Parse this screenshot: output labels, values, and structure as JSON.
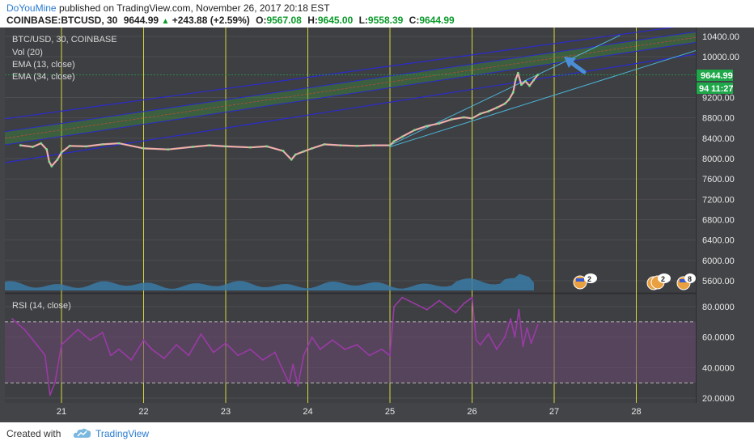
{
  "header": {
    "author": "DoYouMine",
    "published_text": "published on TradingView.com, November 26, 2017 20:18 EST",
    "symbol": "COINBASE:BTCUSD, 30",
    "last": "9644.99",
    "change": "+243.88 (+2.59%)",
    "o_label": "O:",
    "o_value": "9567.08",
    "h_label": "H:",
    "h_value": "9645.00",
    "l_label": "L:",
    "l_value": "9558.39",
    "c_label": "C:",
    "c_value": "9644.99"
  },
  "legend": {
    "pair": "BTC/USD, 30, COINBASE",
    "vol": "Vol (20)",
    "ema13": "EMA (13, close)",
    "ema34": "EMA (34, close)",
    "rsi": "RSI (14, close)"
  },
  "labels": {
    "last_price": "9644.99",
    "countdown_prefix": "94",
    "countdown": "11:27"
  },
  "badges": [
    {
      "count": "2"
    },
    {
      "count": "2"
    },
    {
      "count": "8"
    }
  ],
  "footer": {
    "created_with": "Created with",
    "brand": "TradingView"
  },
  "colors": {
    "background": "#434447",
    "candles": "#e8a0c0",
    "rsi_line": "#9a3aa6",
    "rsi_band": "#6a4872",
    "volume": "#3a7aa6",
    "channel_outer": "#2a2ad0",
    "channel_fill": "#3a9a3a",
    "trend_line": "#4ab4d8",
    "day_line": "#e8e83a",
    "price_label": "#1ea84a",
    "arrow": "#4a8ed6"
  },
  "chart_data": [
    {
      "type": "line",
      "title": "BTC/USD, 30, COINBASE",
      "x_categories": [
        "21",
        "22",
        "23",
        "24",
        "25",
        "26",
        "27",
        "28"
      ],
      "y_ticks": [
        "10400.00",
        "10000.00",
        "9200.00",
        "8800.00",
        "8400.00",
        "8000.00",
        "7600.00",
        "7200.00",
        "6800.00",
        "6400.00",
        "6000.00",
        "5600.00"
      ],
      "ylim": [
        5400,
        10600
      ],
      "series": [
        {
          "name": "BTC/USD",
          "x": [
            20.5,
            20.65,
            20.75,
            20.82,
            20.85,
            20.88,
            20.95,
            21.0,
            21.1,
            21.3,
            21.5,
            21.7,
            22.0,
            22.3,
            22.6,
            22.8,
            23.0,
            23.3,
            23.5,
            23.7,
            23.8,
            23.85,
            23.95,
            24.05,
            24.2,
            24.4,
            24.6,
            24.8,
            25.0,
            25.05,
            25.15,
            25.3,
            25.45,
            25.6,
            25.75,
            25.9,
            26.0,
            26.1,
            26.2,
            26.3,
            26.4,
            26.45,
            26.5,
            26.53,
            26.56,
            26.6,
            26.65,
            26.7,
            26.75,
            26.8
          ],
          "values": [
            8260,
            8230,
            8300,
            8180,
            7940,
            7850,
            7980,
            8120,
            8250,
            8240,
            8280,
            8300,
            8200,
            8180,
            8230,
            8260,
            8240,
            8220,
            8240,
            8150,
            7980,
            8080,
            8140,
            8200,
            8280,
            8260,
            8250,
            8260,
            8260,
            8340,
            8430,
            8560,
            8640,
            8690,
            8770,
            8810,
            8790,
            8880,
            8930,
            9000,
            9080,
            9160,
            9300,
            9550,
            9680,
            9450,
            9520,
            9430,
            9540,
            9645
          ]
        }
      ]
    },
    {
      "type": "bar",
      "title": "Vol (20)",
      "note": "volume profile"
    },
    {
      "type": "line",
      "title": "RSI (14, close)",
      "y_ticks": [
        "80.0000",
        "60.0000",
        "40.0000",
        "20.0000"
      ],
      "ylim": [
        15,
        88
      ],
      "guides": [
        70,
        30
      ],
      "series": [
        {
          "name": "RSI",
          "x": [
            20.4,
            20.55,
            20.7,
            20.8,
            20.86,
            20.92,
            21.0,
            21.1,
            21.2,
            21.35,
            21.5,
            21.6,
            21.7,
            21.85,
            22.0,
            22.1,
            22.25,
            22.4,
            22.55,
            22.7,
            22.85,
            23.0,
            23.15,
            23.3,
            23.45,
            23.6,
            23.7,
            23.77,
            23.82,
            23.88,
            23.95,
            24.05,
            24.15,
            24.3,
            24.45,
            24.6,
            24.75,
            24.9,
            25.0,
            25.05,
            25.15,
            25.3,
            25.45,
            25.6,
            25.7,
            25.8,
            25.9,
            26.0,
            26.05,
            26.1,
            26.2,
            26.3,
            26.4,
            26.47,
            26.52,
            26.57,
            26.62,
            26.67,
            26.72,
            26.8
          ],
          "values": [
            72,
            65,
            55,
            48,
            22,
            30,
            55,
            60,
            65,
            58,
            63,
            48,
            52,
            45,
            58,
            52,
            46,
            55,
            48,
            62,
            50,
            56,
            48,
            52,
            45,
            50,
            38,
            30,
            42,
            28,
            48,
            60,
            52,
            58,
            52,
            55,
            48,
            52,
            48,
            80,
            86,
            82,
            78,
            84,
            80,
            76,
            82,
            86,
            58,
            55,
            62,
            52,
            60,
            72,
            60,
            78,
            54,
            66,
            56,
            68
          ]
        }
      ]
    }
  ]
}
